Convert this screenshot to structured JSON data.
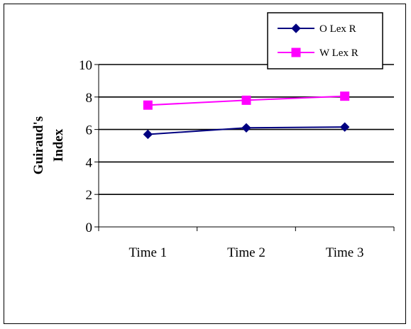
{
  "chart_data": {
    "type": "line",
    "title": "",
    "xlabel": "",
    "ylabel": "Guiraud's Index",
    "ylabel_lines": [
      "Guiraud's",
      "Index"
    ],
    "categories": [
      "Time 1",
      "Time 2",
      "Time 3"
    ],
    "ylim": [
      0,
      10
    ],
    "yticks": [
      0,
      2,
      4,
      6,
      8,
      10
    ],
    "grid": true,
    "legend_position": "top-right",
    "series": [
      {
        "name": "O Lex R",
        "values": [
          5.7,
          6.1,
          6.15
        ],
        "color": "#000080",
        "marker": "diamond"
      },
      {
        "name": "W Lex R",
        "values": [
          7.5,
          7.8,
          8.05
        ],
        "color": "#ff00ff",
        "marker": "square"
      }
    ]
  }
}
